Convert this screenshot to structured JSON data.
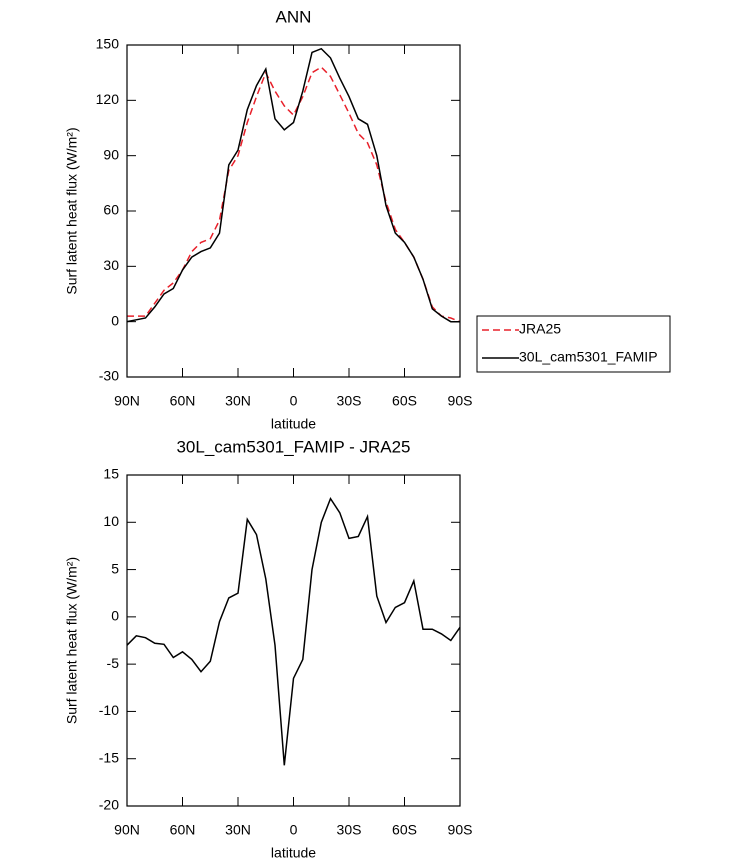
{
  "chart_data": [
    {
      "type": "line",
      "title": "ANN",
      "x_label": "latitude",
      "y_label": "Surf latent heat flux (W/m²)",
      "x": [
        90,
        85,
        80,
        75,
        70,
        65,
        60,
        55,
        50,
        45,
        40,
        35,
        30,
        25,
        20,
        15,
        10,
        5,
        0,
        -5,
        -10,
        -15,
        -20,
        -25,
        -30,
        -35,
        -40,
        -45,
        -50,
        -55,
        -60,
        -65,
        -70,
        -75,
        -80,
        -85,
        -90
      ],
      "series": [
        {
          "name": "JRA25",
          "color": "#e8202a",
          "dash": true,
          "values": [
            3,
            3,
            3,
            10,
            17,
            21,
            28,
            38,
            43,
            45,
            55,
            82,
            90,
            108,
            122,
            135,
            125,
            117,
            112,
            122,
            135,
            138,
            133,
            123,
            113,
            102,
            97,
            85,
            65,
            50,
            43,
            35,
            23,
            8,
            3,
            2,
            0
          ]
        },
        {
          "name": "30L_cam5301_FAMIP",
          "color": "#000000",
          "dash": false,
          "values": [
            0,
            1,
            2,
            8,
            15,
            18,
            28,
            35,
            38,
            40,
            48,
            85,
            93,
            115,
            128,
            137,
            110,
            104,
            108,
            125,
            146,
            148,
            143,
            132,
            122,
            110,
            107,
            90,
            63,
            48,
            43,
            35,
            23,
            7,
            3,
            0,
            0
          ]
        }
      ],
      "xlim": [
        90,
        -90
      ],
      "xticks": [
        {
          "value": 90,
          "label": "90N"
        },
        {
          "value": 60,
          "label": "60N"
        },
        {
          "value": 30,
          "label": "30N"
        },
        0,
        {
          "value": -30,
          "label": "30S"
        },
        {
          "value": -60,
          "label": "60S"
        },
        {
          "value": -90,
          "label": "90S"
        }
      ],
      "ylim": [
        -30,
        150
      ],
      "yticks": [
        -30,
        0,
        30,
        60,
        90,
        120,
        150
      ],
      "legend": "right"
    },
    {
      "type": "line",
      "title": "30L_cam5301_FAMIP - JRA25",
      "x_label": "latitude",
      "y_label": "Surf latent heat flux (W/m²)",
      "x": [
        90,
        85,
        80,
        75,
        70,
        65,
        60,
        55,
        50,
        45,
        40,
        35,
        30,
        25,
        20,
        15,
        10,
        5,
        0,
        -5,
        -10,
        -15,
        -20,
        -25,
        -30,
        -35,
        -40,
        -45,
        -50,
        -55,
        -60,
        -65,
        -70,
        -75,
        -80,
        -85,
        -90
      ],
      "series": [
        {
          "color": "#000000",
          "dash": false,
          "values": [
            -3,
            -2,
            -2.2,
            -2.8,
            -2.9,
            -4.3,
            -3.7,
            -4.5,
            -5.8,
            -4.7,
            -0.5,
            2,
            2.5,
            10.3,
            8.7,
            4,
            -3,
            -15.7,
            -6.5,
            -4.5,
            5,
            10,
            12.5,
            11,
            8.3,
            8.5,
            10.6,
            2.2,
            -0.6,
            1,
            1.5,
            3.8,
            -1.3,
            -1.3,
            -1.8,
            -2.5,
            -1.1
          ]
        }
      ],
      "xlim": [
        90,
        -90
      ],
      "xticks": [
        {
          "value": 90,
          "label": "90N"
        },
        {
          "value": 60,
          "label": "60N"
        },
        {
          "value": 30,
          "label": "30N"
        },
        0,
        {
          "value": -30,
          "label": "30S"
        },
        {
          "value": -60,
          "label": "60S"
        },
        {
          "value": -90,
          "label": "90S"
        }
      ],
      "ylim": [
        -20,
        15
      ],
      "yticks": [
        -20,
        -15,
        -10,
        -5,
        0,
        5,
        10,
        15
      ]
    }
  ]
}
